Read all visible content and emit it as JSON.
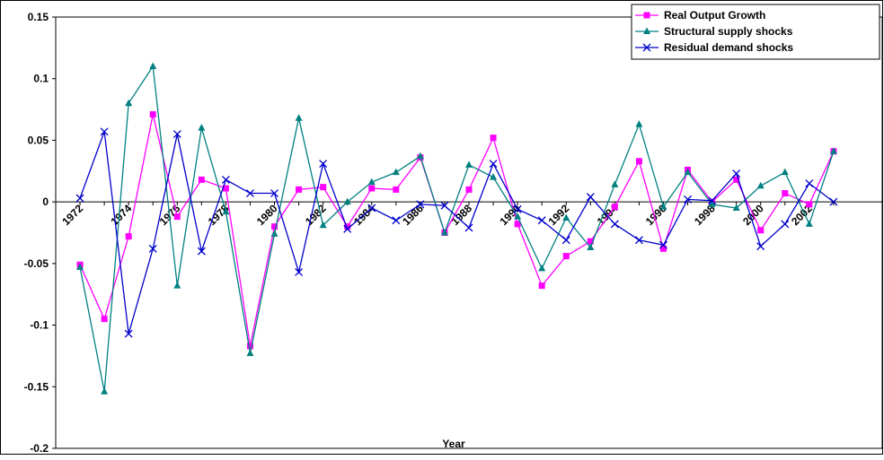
{
  "chart_data": {
    "type": "line",
    "x_label": "Year",
    "x": [
      1972,
      1973,
      1974,
      1975,
      1976,
      1977,
      1978,
      1979,
      1980,
      1981,
      1982,
      1983,
      1984,
      1985,
      1986,
      1987,
      1988,
      1989,
      1990,
      1991,
      1992,
      1993,
      1994,
      1995,
      1996,
      1997,
      1998,
      1999,
      2000,
      2001,
      2002,
      2003
    ],
    "xlim": [
      1971,
      2005
    ],
    "xticks": [
      1972,
      1974,
      1976,
      1978,
      1980,
      1982,
      1984,
      1986,
      1988,
      1990,
      1992,
      1994,
      1996,
      1998,
      2000,
      2002
    ],
    "ylim": [
      -0.2,
      0.15
    ],
    "yticks": [
      -0.2,
      -0.15,
      -0.1,
      -0.05,
      0,
      0.05,
      0.1,
      0.15
    ],
    "legend_position": "top-right",
    "series": [
      {
        "name": "Real Output Growth",
        "color": "#ff00ff",
        "marker": "square",
        "values": [
          -0.051,
          -0.095,
          -0.028,
          0.071,
          -0.012,
          0.018,
          0.011,
          -0.117,
          -0.02,
          0.01,
          0.012,
          -0.02,
          0.011,
          0.01,
          0.036,
          -0.025,
          0.01,
          0.052,
          -0.018,
          -0.068,
          -0.044,
          -0.032,
          -0.004,
          0.033,
          -0.038,
          0.026,
          0.0,
          0.018,
          -0.023,
          0.007,
          -0.002,
          0.041
        ]
      },
      {
        "name": "Structural supply shocks",
        "color": "#008080",
        "marker": "triangle",
        "values": [
          -0.053,
          -0.154,
          0.08,
          0.11,
          -0.068,
          0.06,
          -0.008,
          -0.123,
          -0.026,
          0.068,
          -0.019,
          0.0,
          0.016,
          0.024,
          0.037,
          -0.025,
          0.03,
          0.02,
          -0.012,
          -0.054,
          -0.013,
          -0.037,
          0.014,
          0.063,
          -0.004,
          0.024,
          -0.002,
          -0.005,
          0.013,
          0.024,
          -0.018,
          0.041
        ]
      },
      {
        "name": "Residual demand shocks",
        "color": "#0000cc",
        "marker": "x",
        "values": [
          0.003,
          0.057,
          -0.107,
          -0.038,
          0.055,
          -0.04,
          0.018,
          0.007,
          0.007,
          -0.057,
          0.031,
          -0.022,
          -0.005,
          -0.015,
          -0.002,
          -0.003,
          -0.021,
          0.031,
          -0.006,
          -0.015,
          -0.031,
          0.004,
          -0.018,
          -0.031,
          -0.035,
          0.002,
          0.001,
          0.023,
          -0.036,
          -0.018,
          0.015,
          0.0
        ]
      }
    ]
  }
}
